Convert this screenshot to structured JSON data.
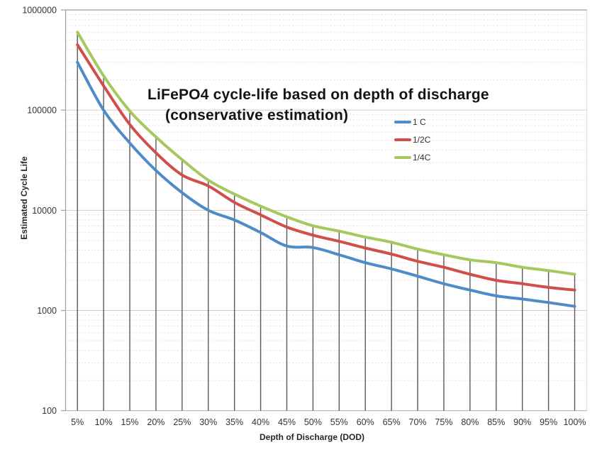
{
  "title": {
    "line1": "LiFePO4 cycle-life based on depth of discharge",
    "line2": "(conservative estimation)"
  },
  "axes": {
    "x_title": "Depth of Discharge (DOD)",
    "y_title": "Estimated Cycle Life"
  },
  "chart_data": {
    "type": "line",
    "title": "LiFePO4 cycle-life based on depth of discharge (conservative estimation)",
    "xlabel": "Depth of Discharge (DOD)",
    "ylabel": "Estimated Cycle Life",
    "y_scale": "log",
    "ylim": [
      100,
      1000000
    ],
    "y_ticks": [
      100,
      1000,
      10000,
      100000,
      1000000
    ],
    "y_tick_labels": [
      "100",
      "1000",
      "10000",
      "100000",
      "1000000"
    ],
    "x_tick_labels": [
      "5%",
      "10%",
      "15%",
      "20%",
      "25%",
      "30%",
      "35%",
      "40%",
      "45%",
      "50%",
      "55%",
      "60%",
      "65%",
      "70%",
      "75%",
      "80%",
      "85%",
      "90%",
      "95%",
      "100%"
    ],
    "categories": [
      5,
      10,
      15,
      20,
      25,
      30,
      35,
      40,
      45,
      50,
      55,
      60,
      65,
      70,
      75,
      80,
      85,
      90,
      95,
      100
    ],
    "series": [
      {
        "name": "1 C",
        "color": "#4e8bc8",
        "values": [
          300000,
          100000,
          47000,
          25000,
          15000,
          10000,
          8000,
          6000,
          4400,
          4250,
          3600,
          3000,
          2600,
          2200,
          1850,
          1600,
          1400,
          1300,
          1200,
          1100
        ]
      },
      {
        "name": "1/2C",
        "color": "#cf4f4b",
        "values": [
          450000,
          175000,
          72000,
          37500,
          22500,
          17500,
          12000,
          9000,
          6800,
          5650,
          4900,
          4200,
          3650,
          3100,
          2700,
          2300,
          2000,
          1850,
          1700,
          1600
        ]
      },
      {
        "name": "1/4C",
        "color": "#a6c85e",
        "values": [
          600000,
          220000,
          98000,
          54000,
          32000,
          20000,
          14500,
          11000,
          8600,
          7000,
          6200,
          5400,
          4800,
          4100,
          3600,
          3200,
          3000,
          2700,
          2500,
          2300
        ]
      }
    ],
    "drop_lines": true,
    "smoothed_lines": true,
    "markers": false,
    "legend_position": "inside-upper-right",
    "grid": {
      "major_horizontal": true,
      "minor_horizontal_log": true,
      "vertical": false
    }
  },
  "colors": {
    "drop_line": "#595959",
    "major_grid": "#dbc5c5",
    "minor_grid": "#eedcdc",
    "axis_line": "#9e9e9e",
    "right_border": "#d9d9d9",
    "bottom_axis": "#b3a4a4",
    "tick_text": "#333333"
  }
}
